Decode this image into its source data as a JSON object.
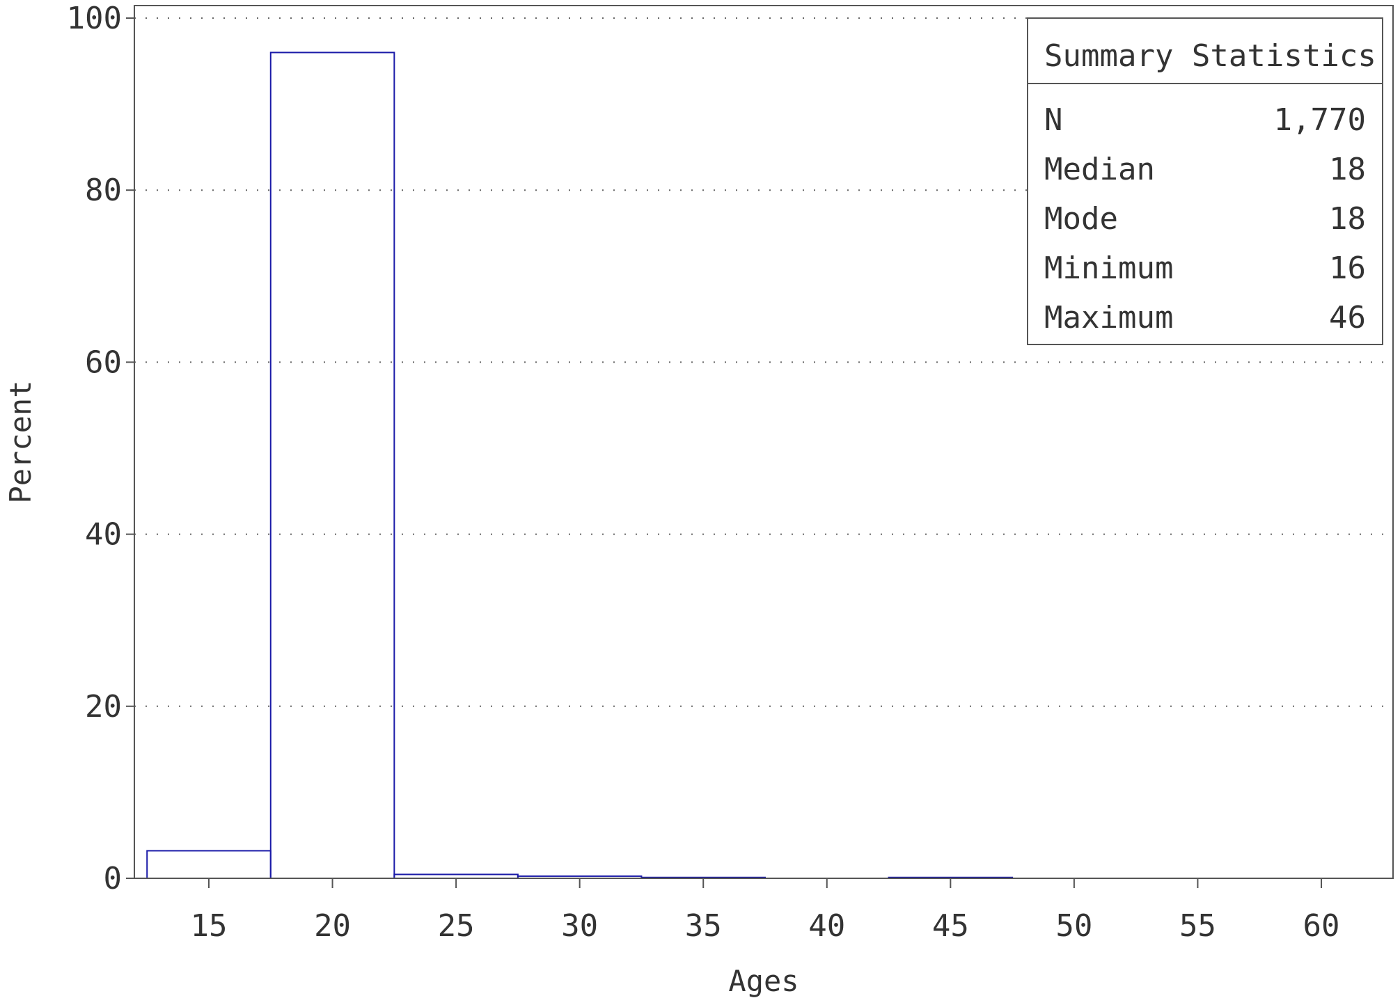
{
  "chart_data": {
    "type": "bar",
    "xlabel": "Ages",
    "ylabel": "Percent",
    "xlim": [
      12.5,
      63.5
    ],
    "ylim": [
      0,
      100
    ],
    "x_ticks": [
      15,
      20,
      25,
      30,
      35,
      40,
      45,
      50,
      55,
      60
    ],
    "y_ticks": [
      0,
      20,
      40,
      60,
      80,
      100
    ],
    "grid": "horizontal-dotted",
    "bin_width": 5,
    "bins": [
      {
        "center": 15,
        "value": 3.2
      },
      {
        "center": 20,
        "value": 96.0
      },
      {
        "center": 25,
        "value": 0.45
      },
      {
        "center": 30,
        "value": 0.25
      },
      {
        "center": 35,
        "value": 0.1
      },
      {
        "center": 40,
        "value": 0.0
      },
      {
        "center": 45,
        "value": 0.1
      },
      {
        "center": 50,
        "value": 0.0
      },
      {
        "center": 55,
        "value": 0.0
      },
      {
        "center": 60,
        "value": 0.0
      }
    ],
    "bar_color": "#1a1aa8",
    "summary_statistics": {
      "title": "Summary Statistics",
      "placement": "top-right",
      "rows": [
        {
          "label": "N",
          "value": "1,770"
        },
        {
          "label": "Median",
          "value": "18"
        },
        {
          "label": "Mode",
          "value": "18"
        },
        {
          "label": "Minimum",
          "value": "16"
        },
        {
          "label": "Maximum",
          "value": "46"
        }
      ]
    }
  }
}
